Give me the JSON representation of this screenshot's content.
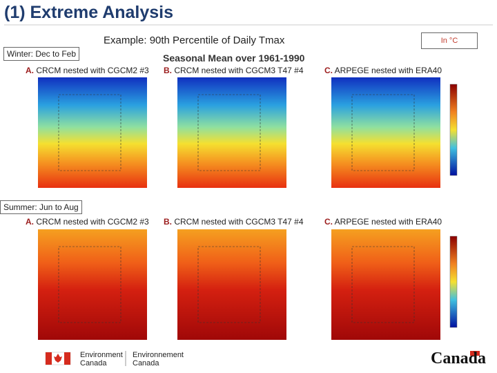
{
  "header": {
    "title": "(1) Extreme Analysis",
    "subtitle": "Example: 90th Percentile of Daily Tmax",
    "unit_note": "In °C",
    "seasonal_mean": "Seasonal Mean over 1961-1990"
  },
  "sections": [
    {
      "label": "Winter: Dec to Feb",
      "panels": [
        {
          "letter": "A.",
          "text": "CRCM nested with CGCM2 #3"
        },
        {
          "letter": "B.",
          "text": "CRCM nested with CGCM3 T47 #4"
        },
        {
          "letter": "C.",
          "text": "ARPEGE nested with ERA40"
        }
      ]
    },
    {
      "label": "Summer: Jun to Aug",
      "panels": [
        {
          "letter": "A.",
          "text": "CRCM nested with CGCM2 #3"
        },
        {
          "letter": "B.",
          "text": "CRCM nested with CGCM3 T47 #4"
        },
        {
          "letter": "C.",
          "text": "ARPEGE nested with ERA40"
        }
      ]
    }
  ],
  "footer": {
    "en_line1": "Environment",
    "en_line2": "Canada",
    "fr_line1": "Environnement",
    "fr_line2": "Canada",
    "wordmark": "Canada"
  }
}
